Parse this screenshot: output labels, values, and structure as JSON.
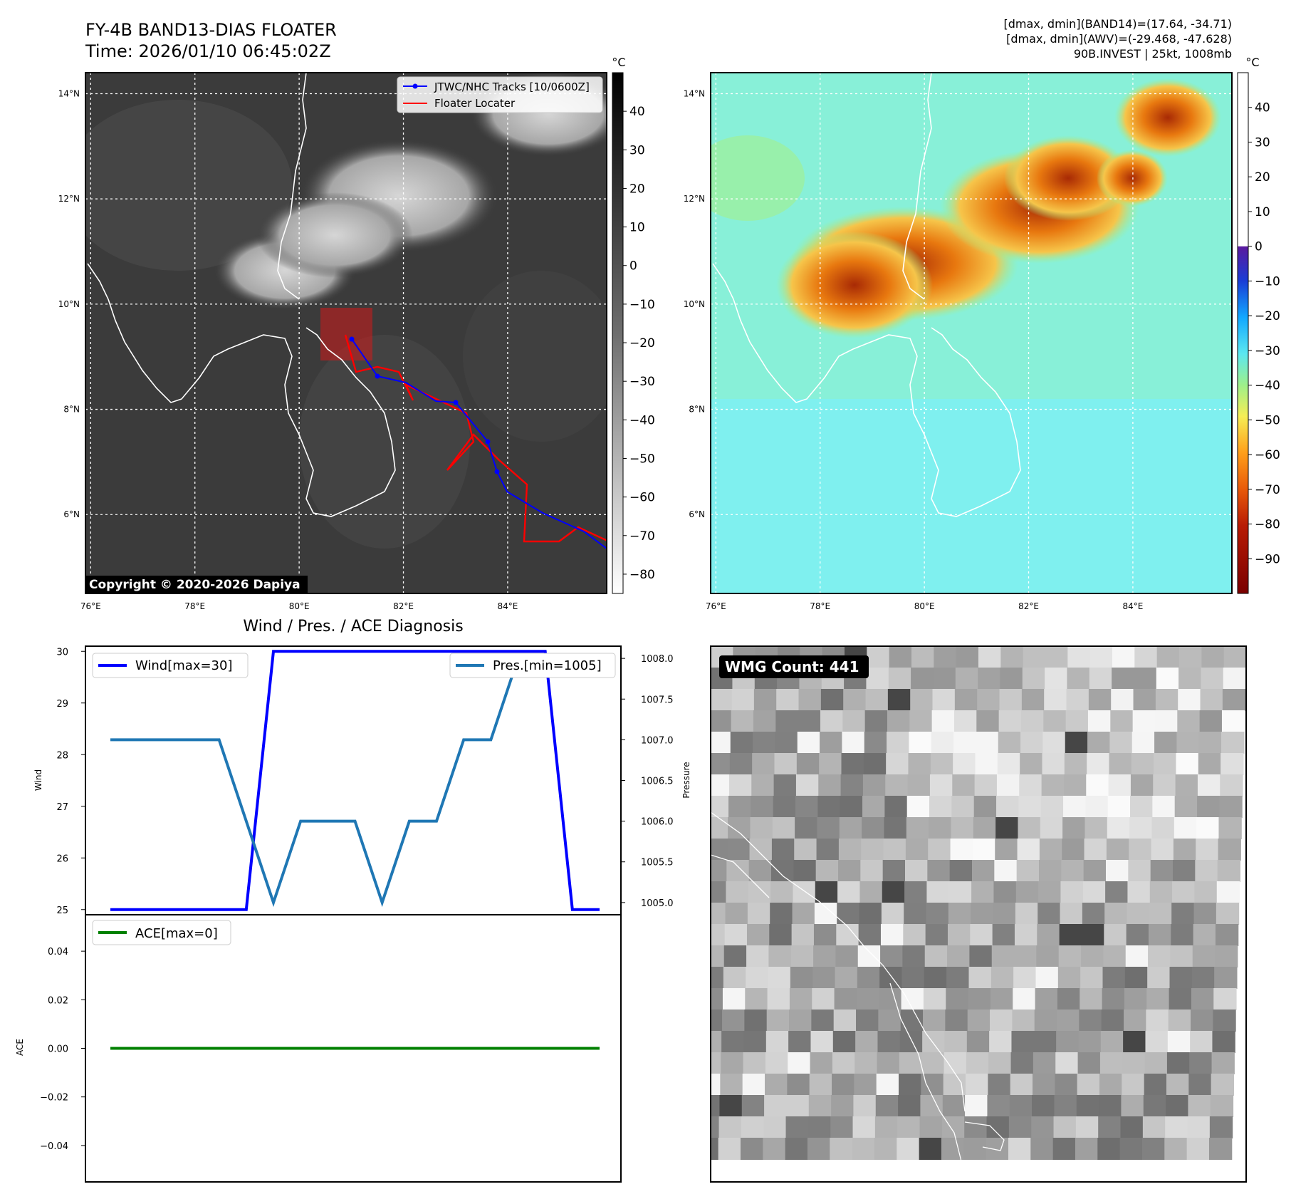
{
  "header": {
    "title_line1": "FY-4B BAND13-DIAS FLOATER",
    "title_line2": "Time: 2026/01/10 06:45:02Z",
    "info_line1": "[dmax, dmin](BAND14)=(17.64, -34.71)",
    "info_line2": "[dmax, dmin](AWV)=(-29.468, -47.628)",
    "info_line3": "90B.INVEST | 25kt, 1008mb"
  },
  "map_common": {
    "lon_ticks": [
      "76°E",
      "78°E",
      "80°E",
      "82°E",
      "84°E"
    ],
    "lat_ticks": [
      "14°N",
      "12°N",
      "10°N",
      "8°N",
      "6°N"
    ],
    "lon_values": [
      76,
      78,
      80,
      82,
      84
    ],
    "lat_values": [
      14,
      12,
      10,
      8,
      6
    ],
    "lon_range": [
      75.9,
      85.9
    ],
    "lat_range": [
      4.5,
      14.4
    ]
  },
  "ir_map": {
    "cbar_unit": "°C",
    "cbar_ticks": [
      "40",
      "30",
      "20",
      "10",
      "0",
      "−10",
      "−20",
      "−30",
      "−40",
      "−50",
      "−60",
      "−70",
      "−80"
    ],
    "cbar_values": [
      40,
      30,
      20,
      10,
      0,
      -10,
      -20,
      -30,
      -40,
      -50,
      -60,
      -70,
      -80
    ],
    "cbar_range": [
      -85,
      50
    ],
    "legend_track": "JTWC/NHC Tracks [10/0600Z]",
    "legend_locater": "Floater Locater",
    "copyright": "Copyright © 2020-2026 Dapiya",
    "colors": {
      "track": "#0000ff",
      "locater": "#ff0000",
      "contour_yellow": "#f2e04b",
      "contour_green": "#6fcf5f",
      "contour_teal": "#1f9a86"
    }
  },
  "wv_map": {
    "cbar_unit": "°C",
    "cbar_ticks": [
      "40",
      "30",
      "20",
      "10",
      "0",
      "−10",
      "−20",
      "−30",
      "−40",
      "−50",
      "−60",
      "−70",
      "−80",
      "−90"
    ],
    "cbar_values": [
      40,
      30,
      20,
      10,
      0,
      -10,
      -20,
      -30,
      -40,
      -50,
      -60,
      -70,
      -80,
      -90
    ],
    "cbar_range": [
      -100,
      50
    ]
  },
  "wmg_panel": {
    "label": "WMG Count: 441"
  },
  "chart_data": [
    {
      "type": "line",
      "title": "Wind / Pres. / ACE Diagnosis",
      "ylabel": "Wind",
      "y2label": "Pressure",
      "ylim": [
        24.9,
        30.1
      ],
      "y2lim": [
        1004.85,
        1008.15
      ],
      "yticks": [
        "30",
        "29",
        "28",
        "27",
        "26",
        "25"
      ],
      "ytick_values": [
        30,
        29,
        28,
        27,
        26,
        25
      ],
      "y2ticks": [
        "1008.0",
        "1007.5",
        "1007.0",
        "1006.5",
        "1006.0",
        "1005.5",
        "1005.0"
      ],
      "y2tick_values": [
        1008.0,
        1007.5,
        1007.0,
        1006.5,
        1006.0,
        1005.5,
        1005.0
      ],
      "legend_wind": "Wind[max=30]",
      "legend_pres": "Pres.[min=1005]",
      "series": [
        {
          "name": "Wind[max=30]",
          "color": "#0000ff",
          "values": [
            25,
            25,
            25,
            25,
            25,
            25,
            30,
            30,
            30,
            30,
            30,
            30,
            30,
            30,
            30,
            30,
            30,
            25,
            25
          ]
        },
        {
          "name": "Pres.[min=1005]",
          "color": "#1f77b4",
          "values": [
            1007,
            1007,
            1007,
            1007,
            1007,
            1006,
            1005,
            1006,
            1006,
            1006,
            1005,
            1006,
            1006,
            1007,
            1007,
            1008,
            1008,
            1008,
            1008
          ]
        }
      ]
    },
    {
      "type": "line",
      "ylabel": "ACE",
      "ylim": [
        -0.055,
        0.055
      ],
      "yticks": [
        "0.04",
        "0.02",
        "0.00",
        "−0.02",
        "−0.04"
      ],
      "ytick_values": [
        0.04,
        0.02,
        0.0,
        -0.02,
        -0.04
      ],
      "legend_ace": "ACE[max=0]",
      "series": [
        {
          "name": "ACE[max=0]",
          "color": "#008000",
          "values": [
            0,
            0,
            0,
            0,
            0,
            0,
            0,
            0,
            0,
            0,
            0,
            0,
            0,
            0,
            0,
            0,
            0,
            0,
            0
          ]
        }
      ]
    }
  ]
}
